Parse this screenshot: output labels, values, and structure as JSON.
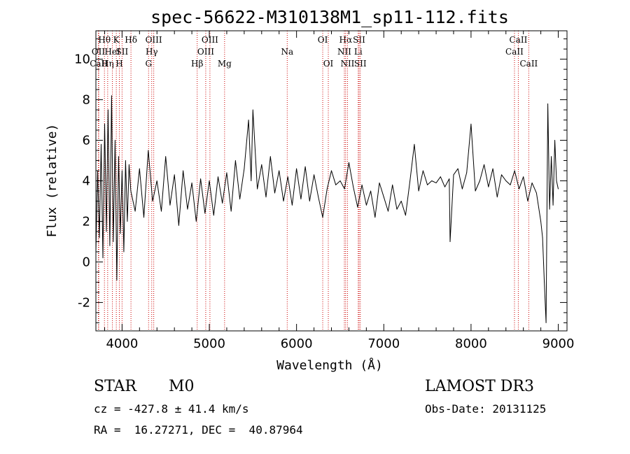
{
  "chart_data": {
    "type": "line",
    "title": "spec-56622-M310138M1_sp11-112.fits",
    "xlabel": "Wavelength (Å)",
    "ylabel": "Flux (relative)",
    "xlim": [
      3700,
      9100
    ],
    "ylim": [
      -3.4,
      11.4
    ],
    "xticks": [
      4000,
      5000,
      6000,
      7000,
      8000,
      9000
    ],
    "yticks": [
      -2,
      0,
      2,
      4,
      6,
      8,
      10
    ],
    "line_color": "#000000",
    "marker_color": "#cc0000",
    "series": [
      {
        "name": "flux",
        "x": [
          3700,
          3720,
          3740,
          3760,
          3780,
          3800,
          3820,
          3840,
          3860,
          3880,
          3900,
          3920,
          3940,
          3960,
          3980,
          4000,
          4020,
          4040,
          4060,
          4080,
          4100,
          4150,
          4200,
          4250,
          4300,
          4350,
          4400,
          4450,
          4500,
          4550,
          4600,
          4650,
          4700,
          4750,
          4800,
          4850,
          4900,
          4950,
          5000,
          5050,
          5100,
          5150,
          5200,
          5250,
          5300,
          5350,
          5400,
          5450,
          5480,
          5500,
          5550,
          5600,
          5650,
          5700,
          5750,
          5800,
          5850,
          5900,
          5950,
          6000,
          6050,
          6100,
          6150,
          6200,
          6250,
          6300,
          6350,
          6400,
          6450,
          6500,
          6550,
          6600,
          6650,
          6700,
          6750,
          6800,
          6850,
          6900,
          6950,
          7000,
          7050,
          7100,
          7150,
          7200,
          7250,
          7300,
          7350,
          7400,
          7450,
          7500,
          7550,
          7600,
          7650,
          7700,
          7750,
          7760,
          7800,
          7850,
          7900,
          7950,
          8000,
          8050,
          8100,
          8150,
          8200,
          8250,
          8300,
          8350,
          8400,
          8450,
          8500,
          8550,
          8600,
          8650,
          8700,
          8750,
          8800,
          8820,
          8840,
          8860,
          8880,
          8900,
          8920,
          8940,
          8960,
          8980,
          9000
        ],
        "y": [
          0.5,
          4.5,
          1.2,
          5.8,
          0.2,
          6.8,
          1.5,
          7.5,
          0.8,
          8.2,
          1.0,
          6.0,
          -0.9,
          5.2,
          1.4,
          4.5,
          0.5,
          5.0,
          2.0,
          4.8,
          3.5,
          2.5,
          4.6,
          2.2,
          5.5,
          3.0,
          4.0,
          2.5,
          5.2,
          2.8,
          4.3,
          1.8,
          4.5,
          2.6,
          3.9,
          2.0,
          4.1,
          2.4,
          4.0,
          2.3,
          4.2,
          2.9,
          4.4,
          2.5,
          5.0,
          3.1,
          4.6,
          7.0,
          4.0,
          7.5,
          3.6,
          4.8,
          3.2,
          5.2,
          3.4,
          4.5,
          3.0,
          4.2,
          2.8,
          4.6,
          3.1,
          4.7,
          3.0,
          4.3,
          3.2,
          2.2,
          3.6,
          4.5,
          3.8,
          4.0,
          3.6,
          4.9,
          3.7,
          2.7,
          3.8,
          2.8,
          3.5,
          2.2,
          3.9,
          3.2,
          2.5,
          3.8,
          2.6,
          3.0,
          2.3,
          4.0,
          5.8,
          3.5,
          4.5,
          3.8,
          4.0,
          3.9,
          4.2,
          3.7,
          4.1,
          1.0,
          4.3,
          4.6,
          3.6,
          4.4,
          6.8,
          3.5,
          4.0,
          4.8,
          3.7,
          4.6,
          3.2,
          4.3,
          4.0,
          3.8,
          4.5,
          3.6,
          4.2,
          3.0,
          3.9,
          3.4,
          2.0,
          1.2,
          -1.0,
          -3.0,
          7.8,
          2.6,
          5.2,
          2.8,
          6.0,
          4.0,
          3.6
        ]
      }
    ],
    "line_markers": [
      {
        "name": "Hθ",
        "wave": 3798,
        "row": 1
      },
      {
        "name": "OII",
        "wave": 3728,
        "row": 2
      },
      {
        "name": "CaII",
        "wave": 3733,
        "row": 3
      },
      {
        "name": "Hη",
        "wave": 3835,
        "row": 3
      },
      {
        "name": "K",
        "wave": 3934,
        "row": 1
      },
      {
        "name": "HeI",
        "wave": 3889,
        "row": 2
      },
      {
        "name": "SII",
        "wave": 4000,
        "row": 2
      },
      {
        "name": "H",
        "wave": 3969,
        "row": 3
      },
      {
        "name": "Hδ",
        "wave": 4102,
        "row": 1
      },
      {
        "name": "OIII",
        "wave": 4363,
        "row": 1
      },
      {
        "name": "Hγ",
        "wave": 4340,
        "row": 2
      },
      {
        "name": "G",
        "wave": 4304,
        "row": 3
      },
      {
        "name": "OIII",
        "wave": 5007,
        "row": 1
      },
      {
        "name": "OIII",
        "wave": 4959,
        "row": 2
      },
      {
        "name": "Hβ",
        "wave": 4861,
        "row": 3
      },
      {
        "name": "Mg",
        "wave": 5175,
        "row": 3
      },
      {
        "name": "Na",
        "wave": 5893,
        "row": 2
      },
      {
        "name": "OI",
        "wave": 6300,
        "row": 1
      },
      {
        "name": "OI",
        "wave": 6364,
        "row": 3
      },
      {
        "name": "Hα",
        "wave": 6563,
        "row": 1
      },
      {
        "name": "NII",
        "wave": 6548,
        "row": 2
      },
      {
        "name": "NII",
        "wave": 6584,
        "row": 3
      },
      {
        "name": "SII",
        "wave": 6717,
        "row": 1
      },
      {
        "name": "Li",
        "wave": 6707,
        "row": 2
      },
      {
        "name": "SII",
        "wave": 6731,
        "row": 3
      },
      {
        "name": "CaII",
        "wave": 8542,
        "row": 1
      },
      {
        "name": "CaII",
        "wave": 8498,
        "row": 2
      },
      {
        "name": "CaII",
        "wave": 8662,
        "row": 3
      }
    ]
  },
  "info": {
    "object_class": "STAR",
    "subclass": "M0",
    "survey": "LAMOST DR3",
    "redshift_text": "cz = -427.8 ± 41.4 km/s",
    "obs_date_text": "Obs-Date: 20131125",
    "coords_text": "RA =  16.27271, DEC =  40.87964"
  }
}
